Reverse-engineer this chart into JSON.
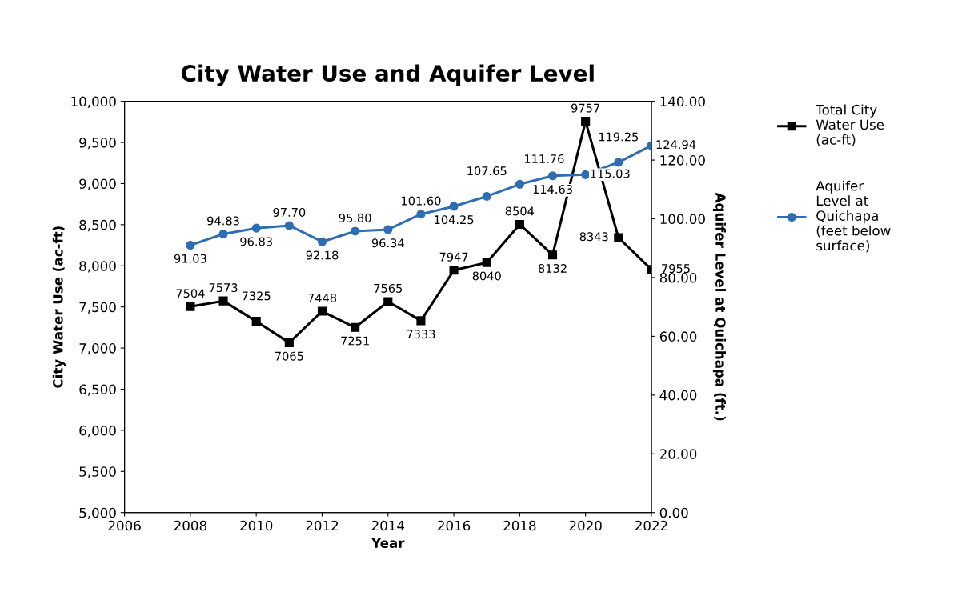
{
  "chart_data": {
    "type": "line",
    "title": "City Water Use and Aquifer Level",
    "xlabel": "Year",
    "ylabel": "City Water Use (ac-ft)",
    "y2label": "Aquifer Level at Quichapa (ft.)",
    "x": [
      2008,
      2009,
      2010,
      2011,
      2012,
      2013,
      2014,
      2015,
      2016,
      2017,
      2018,
      2019,
      2020,
      2021,
      2022
    ],
    "series": [
      {
        "name": "Total City\nWater Use\n(ac-ft)",
        "color": "#000000",
        "marker": "square",
        "values": [
          7504,
          7573,
          7325,
          7065,
          7448,
          7251,
          7565,
          7333,
          7947,
          8040,
          8504,
          8132,
          9757,
          8343,
          7955
        ],
        "value_labels": [
          "7504",
          "7573",
          "7325",
          "7065",
          "7448",
          "7251",
          "7565",
          "7333",
          "7947",
          "8040",
          "8504",
          "8132",
          "9757",
          "8343",
          "7955"
        ]
      },
      {
        "name": "Aquifer\nLevel at\nQuichapa\n(feet below\nsurface)",
        "color": "#2e6db4",
        "marker": "circle",
        "axis": "y2",
        "values": [
          91.03,
          94.83,
          96.83,
          97.7,
          92.18,
          95.8,
          96.34,
          101.6,
          104.25,
          107.65,
          111.76,
          114.63,
          115.03,
          119.25,
          124.94
        ],
        "value_labels": [
          "91.03",
          "94.83",
          "96.83",
          "97.70",
          "92.18",
          "95.80",
          "96.34",
          "101.60",
          "104.25",
          "107.65",
          "111.76",
          "114.63",
          "115.03",
          "119.25",
          "124.94"
        ]
      }
    ],
    "xlim": [
      2006,
      2022
    ],
    "xticks": [
      2006,
      2008,
      2010,
      2012,
      2014,
      2016,
      2018,
      2020,
      2022
    ],
    "ylim": [
      5000,
      10000
    ],
    "yticks": [
      {
        "value": 5000,
        "label": "5,000"
      },
      {
        "value": 5500,
        "label": "5,500"
      },
      {
        "value": 6000,
        "label": "6,000"
      },
      {
        "value": 6500,
        "label": "6,500"
      },
      {
        "value": 7000,
        "label": "7,000"
      },
      {
        "value": 7500,
        "label": "7,500"
      },
      {
        "value": 8000,
        "label": "8,000"
      },
      {
        "value": 8500,
        "label": "8,500"
      },
      {
        "value": 9000,
        "label": "9,000"
      },
      {
        "value": 9500,
        "label": "9,500"
      },
      {
        "value": 10000,
        "label": "10,000"
      }
    ],
    "y2lim": [
      0,
      140
    ],
    "y2ticks": [
      {
        "value": 0,
        "label": "0.00"
      },
      {
        "value": 20,
        "label": "20.00"
      },
      {
        "value": 40,
        "label": "40.00"
      },
      {
        "value": 60,
        "label": "60.00"
      },
      {
        "value": 80,
        "label": "80.00"
      },
      {
        "value": 100,
        "label": "100.00"
      },
      {
        "value": 120,
        "label": "120.00"
      },
      {
        "value": 140,
        "label": "140.00"
      }
    ],
    "legend": "right",
    "grid": false,
    "line_style": "solid"
  }
}
